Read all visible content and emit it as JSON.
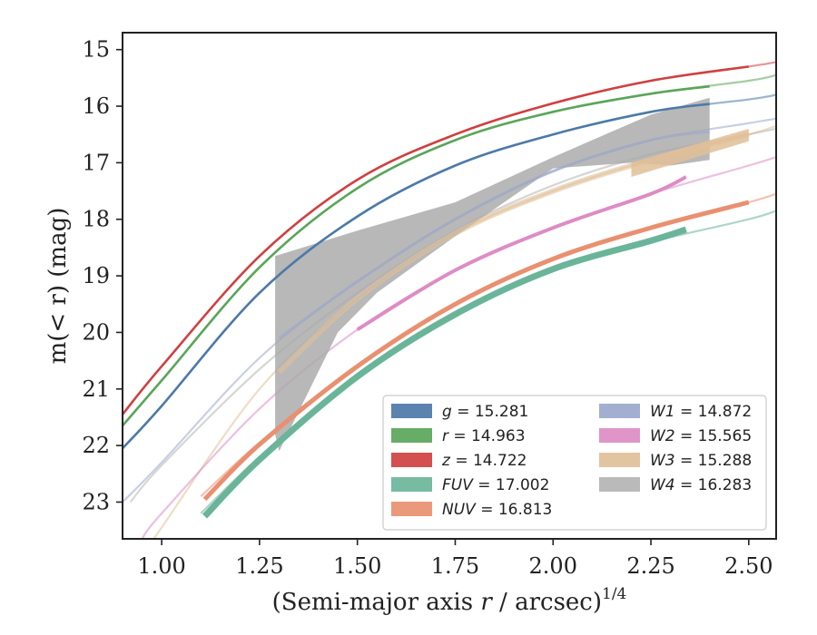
{
  "chart_data": {
    "type": "line",
    "xlabel_main": "(Semi-major axis ",
    "xlabel_var": "r",
    "xlabel_tail": " / arcsec)",
    "xlabel_sup": "1/4",
    "ylabel_main": "m(< r) (mag)",
    "xlim": [
      0.9,
      2.57
    ],
    "ylim": [
      23.65,
      14.7
    ],
    "inverted_y": true,
    "xticks": [
      "1.00",
      "1.25",
      "1.50",
      "1.75",
      "2.00",
      "2.25",
      "2.50"
    ],
    "xtick_values": [
      1.0,
      1.25,
      1.5,
      1.75,
      2.0,
      2.25,
      2.5
    ],
    "yticks": [
      "15",
      "16",
      "17",
      "18",
      "19",
      "20",
      "21",
      "22",
      "23"
    ],
    "ytick_values": [
      15,
      16,
      17,
      18,
      19,
      20,
      21,
      22,
      23
    ],
    "legend_position": "lower right",
    "series": [
      {
        "name": "g = 15.281",
        "var": "g",
        "val": "= 15.281",
        "color": "#4c7aa8",
        "fit": {
          "x": [
            0.9,
            1.0,
            1.25,
            1.5,
            1.75,
            2.0,
            2.25,
            2.5,
            2.57
          ],
          "y": [
            22.05,
            21.3,
            19.3,
            17.95,
            17.05,
            16.5,
            16.1,
            15.88,
            15.8
          ]
        },
        "data": {
          "x": [
            0.9,
            1.0,
            1.25,
            1.5,
            1.75,
            2.0,
            2.25,
            2.4
          ],
          "y": [
            22.05,
            21.3,
            19.3,
            17.95,
            17.05,
            16.5,
            16.1,
            15.96
          ]
        }
      },
      {
        "name": "r = 14.963",
        "var": "r",
        "val": "= 14.963",
        "color": "#5aa55a",
        "fit": {
          "x": [
            0.9,
            1.0,
            1.25,
            1.5,
            1.75,
            2.0,
            2.25,
            2.5,
            2.57
          ],
          "y": [
            21.65,
            20.85,
            18.85,
            17.45,
            16.6,
            16.1,
            15.78,
            15.55,
            15.45
          ]
        },
        "data": {
          "x": [
            0.9,
            1.0,
            1.25,
            1.5,
            1.75,
            2.0,
            2.25,
            2.4
          ],
          "y": [
            21.65,
            20.85,
            18.85,
            17.45,
            16.6,
            16.1,
            15.78,
            15.65
          ]
        }
      },
      {
        "name": "z = 14.722",
        "var": "z",
        "val": "= 14.722",
        "color": "#d04040",
        "fit": {
          "x": [
            0.9,
            1.0,
            1.25,
            1.5,
            1.75,
            2.0,
            2.25,
            2.5,
            2.57
          ],
          "y": [
            21.45,
            20.6,
            18.65,
            17.3,
            16.5,
            15.95,
            15.55,
            15.3,
            15.22
          ]
        },
        "data": {
          "x": [
            0.9,
            1.0,
            1.25,
            1.5,
            1.75,
            2.0,
            2.25,
            2.5
          ],
          "y": [
            21.45,
            20.6,
            18.65,
            17.3,
            16.5,
            15.95,
            15.55,
            15.3
          ]
        }
      },
      {
        "name": "FUV = 17.002",
        "var": "FUV",
        "val": "= 17.002",
        "color": "#6ab59a",
        "fit": {
          "x": [
            1.1,
            1.25,
            1.5,
            1.75,
            2.0,
            2.25,
            2.5,
            2.57
          ],
          "y": [
            23.2,
            22.2,
            20.75,
            19.65,
            18.85,
            18.4,
            18.0,
            17.85
          ]
        },
        "data": {
          "x": [
            1.11,
            1.25,
            1.5,
            1.75,
            2.0,
            2.25,
            2.34
          ],
          "y": [
            23.25,
            22.25,
            20.78,
            19.68,
            18.88,
            18.38,
            18.18
          ]
        }
      },
      {
        "name": "NUV = 16.813",
        "var": "NUV",
        "val": "= 16.813",
        "color": "#e99070",
        "fit": {
          "x": [
            1.1,
            1.25,
            1.5,
            1.75,
            2.0,
            2.25,
            2.5,
            2.57
          ],
          "y": [
            22.9,
            21.95,
            20.6,
            19.5,
            18.7,
            18.15,
            17.7,
            17.55
          ]
        },
        "data": {
          "x": [
            1.11,
            1.25,
            1.5,
            1.75,
            2.0,
            2.25,
            2.5
          ],
          "y": [
            22.95,
            21.98,
            20.6,
            19.5,
            18.7,
            18.15,
            17.7
          ]
        }
      },
      {
        "name": "W1 = 14.872",
        "var": "W1",
        "val": "= 14.872",
        "color": "#9aa8cc",
        "fit": {
          "x": [
            0.9,
            1.0,
            1.25,
            1.5,
            1.75,
            2.0,
            2.25,
            2.5,
            2.57
          ],
          "y": [
            23.0,
            22.3,
            20.45,
            19.1,
            18.0,
            17.15,
            16.6,
            16.3,
            16.22
          ]
        },
        "data": {
          "x": [
            1.3,
            1.5,
            1.75,
            2.0,
            2.25,
            2.4
          ],
          "y": [
            20.1,
            19.1,
            18.0,
            17.15,
            16.6,
            16.45
          ]
        }
      },
      {
        "name": "W2 = 15.565",
        "var": "W2",
        "val": "= 15.565",
        "color": "#dd8cc4",
        "fit": {
          "x": [
            0.95,
            1.0,
            1.25,
            1.5,
            1.75,
            2.0,
            2.25,
            2.5,
            2.57
          ],
          "y": [
            23.65,
            23.2,
            21.35,
            19.95,
            18.9,
            18.15,
            17.55,
            17.05,
            16.9
          ]
        },
        "data": {
          "x": [
            1.5,
            1.75,
            2.0,
            2.25,
            2.34
          ],
          "y": [
            19.95,
            18.9,
            18.15,
            17.55,
            17.25
          ]
        }
      },
      {
        "name": "W3 = 15.288",
        "var": "W3",
        "val": "= 15.288",
        "color": "#e0c098",
        "fit": {
          "x": [
            0.98,
            1.0,
            1.25,
            1.5,
            1.75,
            2.0,
            2.25,
            2.5,
            2.57
          ],
          "y": [
            23.65,
            23.45,
            21.0,
            19.4,
            18.25,
            17.5,
            16.95,
            16.5,
            16.35
          ]
        },
        "data": {
          "x": [
            1.3,
            1.5,
            1.75,
            2.0,
            2.25,
            2.5
          ],
          "y": [
            20.7,
            19.4,
            18.25,
            17.5,
            16.95,
            16.5
          ]
        }
      },
      {
        "name": "W4 = 16.283",
        "var": "W4",
        "val": "= 16.283",
        "color": "#b4b4b4",
        "fit": {
          "x": [
            0.92,
            1.0,
            1.25,
            1.5,
            1.75,
            2.0,
            2.25,
            2.5,
            2.57
          ],
          "y": [
            23.0,
            22.35,
            20.65,
            19.3,
            18.2,
            17.4,
            16.85,
            16.5,
            16.4
          ]
        },
        "band": {
          "x_upper": [
            1.29,
            1.5,
            1.75,
            2.0,
            2.25,
            2.4
          ],
          "y_upper": [
            18.65,
            18.2,
            17.7,
            16.9,
            16.15,
            15.85
          ],
          "x_lower": [
            2.4,
            2.3,
            2.2,
            2.0,
            1.75,
            1.55,
            1.45,
            1.3,
            1.29
          ],
          "y_lower": [
            16.95,
            17.05,
            17.0,
            17.1,
            18.3,
            19.3,
            20.0,
            22.1,
            21.8
          ]
        }
      }
    ]
  }
}
